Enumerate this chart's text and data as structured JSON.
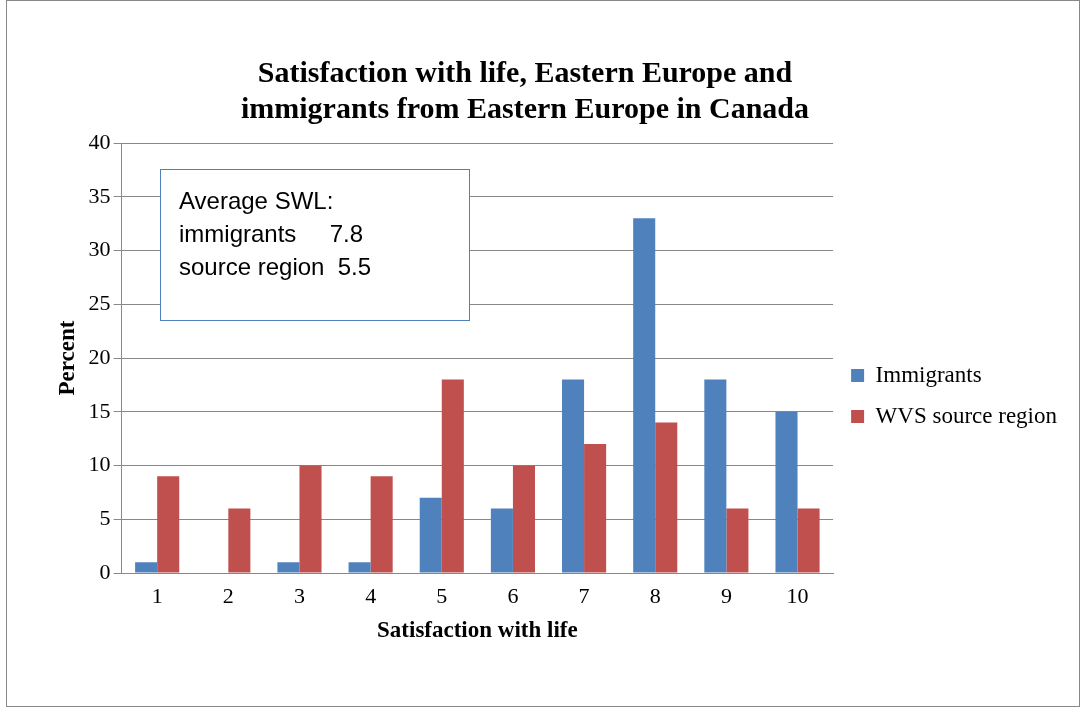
{
  "chart_data": {
    "type": "bar",
    "title": "Satisfaction with life, Eastern Europe and immigrants from Eastern Europe in Canada",
    "xlabel": "Satisfaction with life",
    "ylabel": "Percent",
    "categories": [
      "1",
      "2",
      "3",
      "4",
      "5",
      "6",
      "7",
      "8",
      "9",
      "10"
    ],
    "series": [
      {
        "name": "Immigrants",
        "color": "#4f81bd",
        "values": [
          1,
          0,
          1,
          1,
          7,
          6,
          18,
          33,
          18,
          15
        ]
      },
      {
        "name": "WVS source region",
        "color": "#c0504d",
        "values": [
          9,
          6,
          10,
          9,
          18,
          10,
          12,
          14,
          6,
          6
        ]
      }
    ],
    "ylim": [
      0,
      40
    ],
    "yticks": [
      0,
      5,
      10,
      15,
      20,
      25,
      30,
      35,
      40
    ],
    "grid": "y",
    "legend": "right",
    "annotations": [
      "Average SWL:",
      "immigrants     7.8",
      "source region  5.5"
    ]
  }
}
